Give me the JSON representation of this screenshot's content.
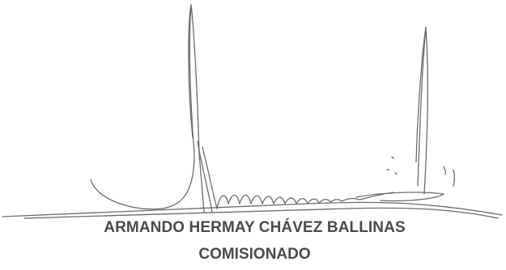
{
  "signature": {
    "signer_name": "ARMANDO HERMAY CHÁVEZ BALLINAS",
    "signer_title": "COMISIONADO",
    "ink_color": "#6b6b6b",
    "text_color": "#4a4a4a"
  }
}
